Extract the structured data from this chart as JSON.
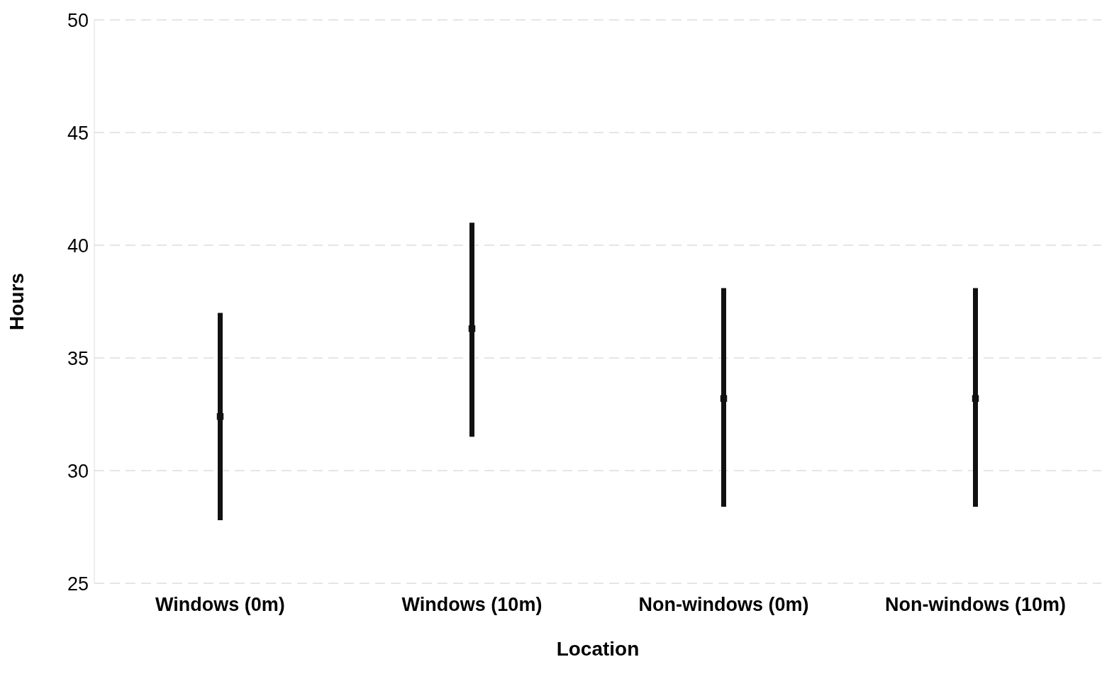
{
  "chart_data": {
    "type": "scatter",
    "xlabel": "Location",
    "ylabel": "Hours",
    "categories": [
      "Windows (0m)",
      "Windows (10m)",
      "Non-windows (0m)",
      "Non-windows (10m)"
    ],
    "values": [
      32.4,
      36.3,
      33.2,
      33.2
    ],
    "errors": [
      [
        27.8,
        37
      ],
      [
        31.5,
        41
      ],
      [
        28.4,
        38.1
      ],
      [
        28.4,
        38.1
      ]
    ],
    "color": "#111111",
    "marker": "square",
    "ylim": [
      25,
      50
    ],
    "yticks": [
      25,
      30,
      35,
      40,
      45,
      50
    ],
    "grid": "y"
  }
}
